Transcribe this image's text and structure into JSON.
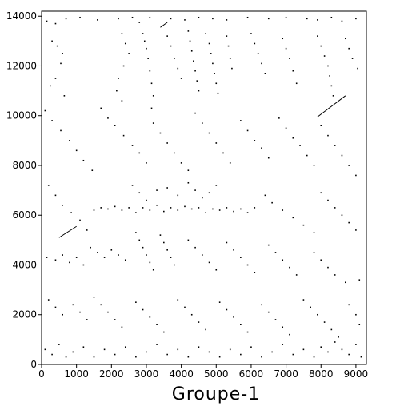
{
  "chart_data": {
    "type": "scatter",
    "title": "",
    "xlabel": "Groupe-1",
    "ylabel": "",
    "xlim": [
      0,
      9300
    ],
    "ylim": [
      0,
      14200
    ],
    "x_ticks": [
      0,
      1000,
      2000,
      3000,
      4000,
      5000,
      6000,
      7000,
      8000,
      9000
    ],
    "y_ticks": [
      0,
      2000,
      4000,
      6000,
      8000,
      10000,
      12000,
      14000
    ],
    "grid": false,
    "legend": "none",
    "colors": {
      "marks": "#000000",
      "frame": "#000000",
      "background": "#ffffff"
    },
    "segments": [
      {
        "x": [
          500,
          1000
        ],
        "y": [
          5100,
          5550
        ]
      },
      {
        "x": [
          7900,
          8700
        ],
        "y": [
          9950,
          10800
        ]
      },
      {
        "x": [
          3400,
          3600
        ],
        "y": [
          13550,
          13750
        ]
      }
    ],
    "points": [
      [
        150,
        13800
      ],
      [
        400,
        13700
      ],
      [
        700,
        13900
      ],
      [
        1100,
        13950
      ],
      [
        1600,
        13850
      ],
      [
        2200,
        13900
      ],
      [
        2600,
        13950
      ],
      [
        2800,
        13750
      ],
      [
        3100,
        13950
      ],
      [
        3700,
        13900
      ],
      [
        4100,
        13850
      ],
      [
        4500,
        13950
      ],
      [
        4900,
        13900
      ],
      [
        5300,
        13850
      ],
      [
        5900,
        13950
      ],
      [
        6500,
        13900
      ],
      [
        7000,
        13950
      ],
      [
        7600,
        13900
      ],
      [
        7900,
        13850
      ],
      [
        8300,
        13950
      ],
      [
        8600,
        13800
      ],
      [
        9000,
        13900
      ],
      [
        300,
        13000
      ],
      [
        450,
        12800
      ],
      [
        600,
        12500
      ],
      [
        550,
        12100
      ],
      [
        400,
        11500
      ],
      [
        250,
        11200
      ],
      [
        650,
        10800
      ],
      [
        2300,
        13300
      ],
      [
        2400,
        12900
      ],
      [
        2500,
        12500
      ],
      [
        2350,
        12000
      ],
      [
        2200,
        11500
      ],
      [
        2150,
        11000
      ],
      [
        2300,
        10600
      ],
      [
        2900,
        13300
      ],
      [
        2950,
        13000
      ],
      [
        3000,
        12700
      ],
      [
        3050,
        12300
      ],
      [
        3100,
        11800
      ],
      [
        3150,
        11300
      ],
      [
        3200,
        10800
      ],
      [
        3150,
        10300
      ],
      [
        3600,
        13200
      ],
      [
        3700,
        12800
      ],
      [
        3800,
        12300
      ],
      [
        3900,
        11900
      ],
      [
        4000,
        11500
      ],
      [
        4200,
        13400
      ],
      [
        4250,
        13000
      ],
      [
        4300,
        12600
      ],
      [
        4350,
        12200
      ],
      [
        4400,
        11800
      ],
      [
        4450,
        11400
      ],
      [
        4500,
        11000
      ],
      [
        4700,
        13300
      ],
      [
        4800,
        12900
      ],
      [
        4850,
        12500
      ],
      [
        4900,
        12100
      ],
      [
        4950,
        11700
      ],
      [
        5000,
        11300
      ],
      [
        5050,
        10900
      ],
      [
        5300,
        13200
      ],
      [
        5350,
        12800
      ],
      [
        5400,
        12300
      ],
      [
        5450,
        11900
      ],
      [
        6000,
        13300
      ],
      [
        6100,
        12900
      ],
      [
        6200,
        12500
      ],
      [
        6300,
        12100
      ],
      [
        6400,
        11700
      ],
      [
        6900,
        13100
      ],
      [
        7000,
        12700
      ],
      [
        7100,
        12300
      ],
      [
        7200,
        11800
      ],
      [
        7300,
        11300
      ],
      [
        7900,
        13200
      ],
      [
        8000,
        12800
      ],
      [
        8100,
        12400
      ],
      [
        8200,
        12000
      ],
      [
        8250,
        11600
      ],
      [
        8300,
        11200
      ],
      [
        8350,
        10800
      ],
      [
        8700,
        13100
      ],
      [
        8800,
        12700
      ],
      [
        8900,
        12300
      ],
      [
        9050,
        11900
      ],
      [
        100,
        10200
      ],
      [
        300,
        9800
      ],
      [
        550,
        9400
      ],
      [
        800,
        9000
      ],
      [
        1000,
        8600
      ],
      [
        1200,
        8200
      ],
      [
        1450,
        7800
      ],
      [
        1700,
        10300
      ],
      [
        1900,
        9900
      ],
      [
        2100,
        9600
      ],
      [
        2350,
        9200
      ],
      [
        2600,
        8800
      ],
      [
        2800,
        8500
      ],
      [
        3000,
        8100
      ],
      [
        3200,
        9700
      ],
      [
        3400,
        9300
      ],
      [
        3600,
        8900
      ],
      [
        3800,
        8500
      ],
      [
        4000,
        8100
      ],
      [
        4200,
        7800
      ],
      [
        4400,
        10100
      ],
      [
        4600,
        9700
      ],
      [
        4800,
        9300
      ],
      [
        5000,
        8900
      ],
      [
        5200,
        8500
      ],
      [
        5400,
        8100
      ],
      [
        5700,
        9800
      ],
      [
        5900,
        9400
      ],
      [
        6100,
        9000
      ],
      [
        6300,
        8700
      ],
      [
        6500,
        8300
      ],
      [
        6800,
        9900
      ],
      [
        7000,
        9500
      ],
      [
        7200,
        9100
      ],
      [
        7400,
        8800
      ],
      [
        7600,
        8400
      ],
      [
        7800,
        8000
      ],
      [
        8000,
        9600
      ],
      [
        8200,
        9200
      ],
      [
        8400,
        8800
      ],
      [
        8600,
        8400
      ],
      [
        8800,
        8000
      ],
      [
        9000,
        7600
      ],
      [
        200,
        7200
      ],
      [
        400,
        6800
      ],
      [
        600,
        6400
      ],
      [
        850,
        6100
      ],
      [
        1100,
        5800
      ],
      [
        1300,
        5400
      ],
      [
        1500,
        6200
      ],
      [
        1700,
        6300
      ],
      [
        1900,
        6250
      ],
      [
        2100,
        6350
      ],
      [
        2300,
        6200
      ],
      [
        2500,
        6300
      ],
      [
        2700,
        6100
      ],
      [
        2900,
        6300
      ],
      [
        3100,
        6200
      ],
      [
        3300,
        6400
      ],
      [
        3500,
        6150
      ],
      [
        3700,
        6300
      ],
      [
        3900,
        6200
      ],
      [
        4100,
        6350
      ],
      [
        4300,
        6250
      ],
      [
        4500,
        6300
      ],
      [
        4700,
        6100
      ],
      [
        4900,
        6250
      ],
      [
        5100,
        6200
      ],
      [
        5300,
        6300
      ],
      [
        5500,
        6150
      ],
      [
        5700,
        6250
      ],
      [
        5900,
        6100
      ],
      [
        6100,
        6300
      ],
      [
        2600,
        7200
      ],
      [
        2800,
        6900
      ],
      [
        3000,
        6600
      ],
      [
        3300,
        7000
      ],
      [
        3600,
        7100
      ],
      [
        3900,
        6800
      ],
      [
        4200,
        7300
      ],
      [
        4400,
        7000
      ],
      [
        4600,
        6700
      ],
      [
        4800,
        6900
      ],
      [
        5000,
        7200
      ],
      [
        6400,
        6800
      ],
      [
        6600,
        6500
      ],
      [
        6900,
        6200
      ],
      [
        7200,
        5900
      ],
      [
        7500,
        5600
      ],
      [
        7800,
        5300
      ],
      [
        8000,
        6900
      ],
      [
        8200,
        6600
      ],
      [
        8400,
        6300
      ],
      [
        8600,
        6000
      ],
      [
        8800,
        5700
      ],
      [
        9000,
        5400
      ],
      [
        150,
        4300
      ],
      [
        400,
        4200
      ],
      [
        600,
        4400
      ],
      [
        800,
        4100
      ],
      [
        1000,
        4300
      ],
      [
        1200,
        4000
      ],
      [
        1400,
        4700
      ],
      [
        1600,
        4500
      ],
      [
        1800,
        4300
      ],
      [
        2000,
        4600
      ],
      [
        2200,
        4400
      ],
      [
        2400,
        4200
      ],
      [
        2700,
        5300
      ],
      [
        2800,
        5000
      ],
      [
        2900,
        4700
      ],
      [
        3000,
        4400
      ],
      [
        3100,
        4100
      ],
      [
        3200,
        3800
      ],
      [
        3400,
        5200
      ],
      [
        3500,
        4900
      ],
      [
        3600,
        4600
      ],
      [
        3700,
        4300
      ],
      [
        3800,
        4000
      ],
      [
        4200,
        5000
      ],
      [
        4400,
        4700
      ],
      [
        4600,
        4400
      ],
      [
        4800,
        4100
      ],
      [
        5000,
        3800
      ],
      [
        5300,
        4900
      ],
      [
        5500,
        4600
      ],
      [
        5700,
        4300
      ],
      [
        5900,
        4000
      ],
      [
        6100,
        3700
      ],
      [
        6500,
        4800
      ],
      [
        6700,
        4500
      ],
      [
        6900,
        4200
      ],
      [
        7100,
        3900
      ],
      [
        7300,
        3600
      ],
      [
        7800,
        4500
      ],
      [
        8000,
        4200
      ],
      [
        8200,
        3900
      ],
      [
        8400,
        3600
      ],
      [
        8700,
        3300
      ],
      [
        9100,
        3400
      ],
      [
        200,
        2600
      ],
      [
        400,
        2300
      ],
      [
        600,
        2000
      ],
      [
        900,
        2400
      ],
      [
        1100,
        2100
      ],
      [
        1300,
        1800
      ],
      [
        1500,
        2700
      ],
      [
        1700,
        2400
      ],
      [
        1900,
        2100
      ],
      [
        2100,
        1800
      ],
      [
        2300,
        1500
      ],
      [
        2700,
        2500
      ],
      [
        2900,
        2200
      ],
      [
        3100,
        1900
      ],
      [
        3300,
        1600
      ],
      [
        3500,
        1300
      ],
      [
        3900,
        2600
      ],
      [
        4100,
        2300
      ],
      [
        4300,
        2000
      ],
      [
        4500,
        1700
      ],
      [
        4700,
        1400
      ],
      [
        5100,
        2500
      ],
      [
        5300,
        2200
      ],
      [
        5500,
        1900
      ],
      [
        5700,
        1600
      ],
      [
        5900,
        1300
      ],
      [
        6300,
        2400
      ],
      [
        6500,
        2100
      ],
      [
        6700,
        1800
      ],
      [
        6900,
        1500
      ],
      [
        7100,
        1200
      ],
      [
        7500,
        2600
      ],
      [
        7700,
        2300
      ],
      [
        7900,
        2000
      ],
      [
        8100,
        1700
      ],
      [
        8300,
        1400
      ],
      [
        8500,
        1100
      ],
      [
        8800,
        2400
      ],
      [
        9000,
        2000
      ],
      [
        9100,
        1600
      ],
      [
        100,
        600
      ],
      [
        300,
        400
      ],
      [
        500,
        800
      ],
      [
        700,
        300
      ],
      [
        900,
        500
      ],
      [
        1200,
        700
      ],
      [
        1500,
        300
      ],
      [
        1800,
        600
      ],
      [
        2100,
        400
      ],
      [
        2400,
        700
      ],
      [
        2700,
        300
      ],
      [
        3000,
        500
      ],
      [
        3300,
        800
      ],
      [
        3600,
        400
      ],
      [
        3900,
        600
      ],
      [
        4200,
        300
      ],
      [
        4500,
        700
      ],
      [
        4800,
        500
      ],
      [
        5100,
        300
      ],
      [
        5400,
        600
      ],
      [
        5700,
        400
      ],
      [
        6000,
        700
      ],
      [
        6300,
        300
      ],
      [
        6600,
        500
      ],
      [
        6900,
        800
      ],
      [
        7200,
        400
      ],
      [
        7500,
        600
      ],
      [
        7800,
        300
      ],
      [
        8000,
        700
      ],
      [
        8200,
        500
      ],
      [
        8400,
        900
      ],
      [
        8600,
        600
      ],
      [
        8800,
        400
      ],
      [
        9000,
        800
      ],
      [
        9150,
        300
      ]
    ]
  }
}
